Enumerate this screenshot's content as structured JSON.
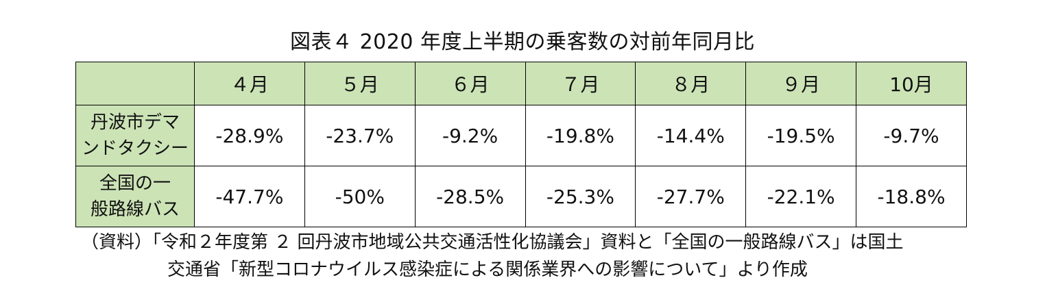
{
  "title": "図表４ 2020 年度上半期の乗客数の対前年同月比",
  "table": {
    "headers": [
      "",
      "４月",
      "５月",
      "６月",
      "７月",
      "８月",
      "９月",
      "10月"
    ],
    "rows": [
      {
        "label_lines": [
          "丹波市デマ",
          "ンドタクシー"
        ],
        "values": [
          "-28.9%",
          "-23.7%",
          "-9.2%",
          "-19.8%",
          "-14.4%",
          "-19.5%",
          "-9.7%"
        ]
      },
      {
        "label_lines": [
          "全国の一",
          "般路線バス"
        ],
        "values": [
          "-47.7%",
          "-50%",
          "-28.5%",
          "-25.3%",
          "-27.7%",
          "-22.1%",
          "-18.8%"
        ]
      }
    ]
  },
  "note": {
    "line1": "（資料）「令和２年度第 ２ 回丹波市地域公共交通活性化協議会」資料と「全国の一般路線バス」は国土",
    "line2": "交通省「新型コロナウイルス感染症による関係業界への影響について」より作成"
  },
  "colors": {
    "header_fill": "#cce3b6",
    "border": "#000000"
  }
}
